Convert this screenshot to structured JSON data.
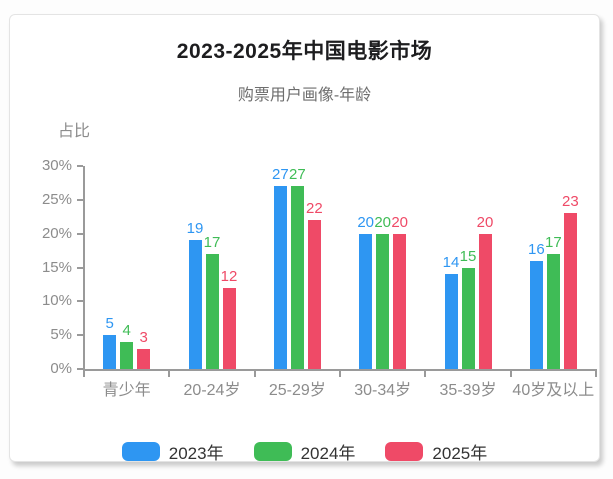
{
  "chart_data": {
    "type": "bar",
    "title": "2023-2025年中国电影市场",
    "subtitle": "购票用户画像-年龄",
    "y_axis_name": "占比",
    "categories": [
      "青少年",
      "20-24岁",
      "25-29岁",
      "30-34岁",
      "35-39岁",
      "40岁及以上"
    ],
    "series": [
      {
        "name": "2023年",
        "color": "#2E96F2",
        "values": [
          5,
          19,
          27,
          20,
          14,
          16
        ]
      },
      {
        "name": "2024年",
        "color": "#3FBC56",
        "values": [
          4,
          17,
          27,
          20,
          15,
          17
        ]
      },
      {
        "name": "2025年",
        "color": "#EF4A67",
        "values": [
          3,
          12,
          22,
          20,
          20,
          23
        ]
      }
    ],
    "ylim": [
      0,
      30
    ],
    "y_tick_step": 5,
    "y_tick_suffix": "%",
    "grid": false,
    "value_labels": true,
    "legend_position": "bottom"
  },
  "style": {
    "axis_color": "#9a9a9a",
    "axis_text_color": "#8c8c8c",
    "title_color": "#1d1d1f",
    "subtitle_color": "#6e6e6e",
    "card_background": "#ffffff"
  }
}
